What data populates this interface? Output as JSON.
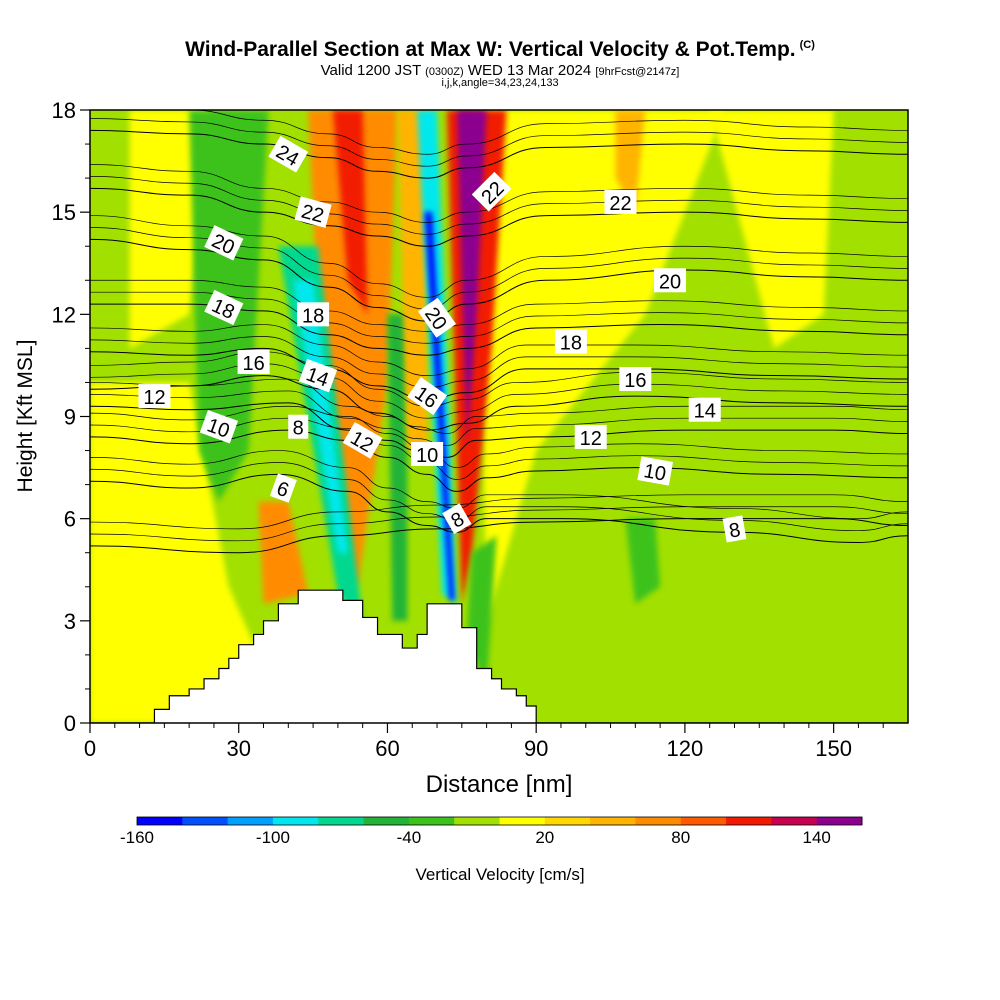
{
  "header": {
    "title": "Wind-Parallel Section at Max W: Vertical Velocity & Pot.Temp.",
    "title_mark": "(C)",
    "valid_prefix": "Valid 1200 JST",
    "valid_utc": "(0300Z)",
    "valid_date": "WED 13 Mar 2024",
    "forecast": "[9hrFcst@2147z]",
    "indices": "i,j,k,angle=34,23,24,133"
  },
  "chart_data": {
    "type": "heatmap",
    "xlabel": "Distance [nm]",
    "ylabel": "Height [Kft MSL]",
    "xlim": [
      0,
      165
    ],
    "ylim": [
      0,
      18
    ],
    "xticks": [
      0,
      30,
      60,
      90,
      120,
      150
    ],
    "yticks": [
      0,
      3,
      6,
      9,
      12,
      15,
      18
    ],
    "colorbar": {
      "label": "Vertical Velocity [cm/s]",
      "levels": [
        -160,
        -140,
        -120,
        -100,
        -80,
        -60,
        -40,
        -20,
        0,
        20,
        40,
        60,
        80,
        100,
        120,
        140,
        160
      ],
      "tick_labels": [
        -160,
        -100,
        -40,
        20,
        80,
        140
      ],
      "colors": [
        "#0000ff",
        "#0050ff",
        "#00a0ff",
        "#00e8ee",
        "#00d890",
        "#22b438",
        "#3cc21c",
        "#a2e000",
        "#ffff00",
        "#ffd800",
        "#ffb400",
        "#ff8c00",
        "#ff5a00",
        "#f21a00",
        "#c80050",
        "#8c0090"
      ]
    },
    "velocity_features": [
      {
        "name": "updraft",
        "x_bottom": 74,
        "x_top": 78,
        "w": 150
      },
      {
        "name": "downdraft",
        "x_bottom": 73,
        "x_top": 68,
        "w": -140
      },
      {
        "name": "downdraft",
        "x_bottom": 52,
        "x_top": 43,
        "w": -90
      },
      {
        "name": "updraft",
        "x_bottom": 38,
        "x_top": 58,
        "w": 70
      },
      {
        "name": "downdraft",
        "x_bottom": 22,
        "x_top": 36,
        "w": -40
      },
      {
        "name": "downdraft",
        "x": 112,
        "y": 5,
        "w": -40
      }
    ],
    "terrain": [
      [
        0,
        0
      ],
      [
        13,
        0.4
      ],
      [
        16,
        0.8
      ],
      [
        20,
        1.0
      ],
      [
        23,
        1.3
      ],
      [
        26,
        1.6
      ],
      [
        28,
        1.9
      ],
      [
        30,
        2.3
      ],
      [
        33,
        2.6
      ],
      [
        35,
        3.0
      ],
      [
        38,
        3.5
      ],
      [
        42,
        3.9
      ],
      [
        48,
        3.9
      ],
      [
        51,
        3.6
      ],
      [
        55,
        3.1
      ],
      [
        58,
        2.6
      ],
      [
        63,
        2.2
      ],
      [
        66,
        2.6
      ],
      [
        68,
        3.5
      ],
      [
        74,
        3.5
      ],
      [
        75,
        2.8
      ],
      [
        78,
        1.6
      ],
      [
        81,
        1.3
      ],
      [
        83,
        1.0
      ],
      [
        86,
        0.8
      ],
      [
        88,
        0.5
      ],
      [
        90,
        0
      ],
      [
        165,
        0
      ]
    ],
    "theta_contours": [
      {
        "label": "6",
        "points": [
          [
            0,
            5.2
          ],
          [
            30,
            5.0
          ],
          [
            50,
            5.5
          ],
          [
            70,
            5.7
          ],
          [
            90,
            5.9
          ],
          [
            120,
            6.0
          ],
          [
            150,
            6.0
          ],
          [
            165,
            5.8
          ]
        ]
      },
      {
        "label": "8",
        "points": [
          [
            0,
            7.1
          ],
          [
            20,
            6.9
          ],
          [
            38,
            7.3
          ],
          [
            52,
            6.8
          ],
          [
            60,
            6.2
          ],
          [
            68,
            5.8
          ],
          [
            74,
            5.6
          ],
          [
            80,
            6.0
          ],
          [
            95,
            6.0
          ],
          [
            130,
            5.6
          ],
          [
            155,
            5.3
          ],
          [
            165,
            5.5
          ]
        ]
      },
      {
        "label": "10",
        "points": [
          [
            0,
            8.4
          ],
          [
            20,
            8.2
          ],
          [
            40,
            8.6
          ],
          [
            52,
            8.3
          ],
          [
            60,
            7.8
          ],
          [
            68,
            7.3
          ],
          [
            74,
            6.8
          ],
          [
            80,
            7.2
          ],
          [
            90,
            7.4
          ],
          [
            110,
            7.5
          ],
          [
            140,
            7.3
          ],
          [
            165,
            7.2
          ]
        ]
      },
      {
        "label": "12",
        "points": [
          [
            0,
            9.3
          ],
          [
            20,
            9.2
          ],
          [
            40,
            9.4
          ],
          [
            52,
            8.6
          ],
          [
            60,
            8.3
          ],
          [
            66,
            8.0
          ],
          [
            72,
            7.8
          ],
          [
            78,
            8.3
          ],
          [
            90,
            8.4
          ],
          [
            120,
            8.6
          ],
          [
            150,
            8.6
          ],
          [
            165,
            8.5
          ]
        ]
      },
      {
        "label": "14",
        "points": [
          [
            0,
            9.8
          ],
          [
            20,
            9.9
          ],
          [
            35,
            10.2
          ],
          [
            48,
            9.8
          ],
          [
            58,
            9.1
          ],
          [
            68,
            8.6
          ],
          [
            76,
            8.8
          ],
          [
            86,
            9.3
          ],
          [
            110,
            9.6
          ],
          [
            140,
            9.4
          ],
          [
            165,
            9.3
          ]
        ]
      },
      {
        "label": "16",
        "points": [
          [
            0,
            10.9
          ],
          [
            20,
            10.8
          ],
          [
            35,
            11.0
          ],
          [
            48,
            10.4
          ],
          [
            58,
            9.9
          ],
          [
            68,
            9.5
          ],
          [
            76,
            9.7
          ],
          [
            88,
            10.4
          ],
          [
            110,
            10.4
          ],
          [
            140,
            10.2
          ],
          [
            165,
            10.1
          ]
        ]
      },
      {
        "label": "18",
        "points": [
          [
            0,
            12.3
          ],
          [
            20,
            12.3
          ],
          [
            35,
            12.1
          ],
          [
            48,
            11.4
          ],
          [
            58,
            11.0
          ],
          [
            68,
            10.8
          ],
          [
            76,
            11.0
          ],
          [
            90,
            11.6
          ],
          [
            115,
            11.7
          ],
          [
            145,
            11.5
          ],
          [
            165,
            11.4
          ]
        ]
      },
      {
        "label": "20",
        "points": [
          [
            0,
            14.2
          ],
          [
            20,
            13.9
          ],
          [
            35,
            13.6
          ],
          [
            48,
            12.8
          ],
          [
            58,
            12.2
          ],
          [
            68,
            11.8
          ],
          [
            76,
            12.3
          ],
          [
            92,
            13.0
          ],
          [
            120,
            13.3
          ],
          [
            145,
            13.1
          ],
          [
            165,
            13.0
          ]
        ]
      },
      {
        "label": "22",
        "points": [
          [
            0,
            15.7
          ],
          [
            20,
            15.5
          ],
          [
            35,
            15.0
          ],
          [
            48,
            14.6
          ],
          [
            58,
            14.3
          ],
          [
            68,
            14.0
          ],
          [
            76,
            14.3
          ],
          [
            92,
            14.9
          ],
          [
            120,
            15.0
          ],
          [
            145,
            14.8
          ],
          [
            165,
            14.7
          ]
        ]
      },
      {
        "label": "24",
        "points": [
          [
            0,
            17.4
          ],
          [
            20,
            17.3
          ],
          [
            35,
            17.0
          ],
          [
            48,
            16.6
          ],
          [
            58,
            16.2
          ],
          [
            68,
            16.0
          ],
          [
            76,
            16.3
          ],
          [
            92,
            16.9
          ],
          [
            120,
            17.0
          ],
          [
            145,
            16.8
          ],
          [
            165,
            16.7
          ]
        ]
      }
    ],
    "contour_labels": [
      {
        "text": "24",
        "x": 40,
        "y": 16.7,
        "angle": 30
      },
      {
        "text": "22",
        "x": 45,
        "y": 15.0,
        "angle": 15
      },
      {
        "text": "22",
        "x": 81,
        "y": 15.6,
        "angle": -45
      },
      {
        "text": "22",
        "x": 107,
        "y": 15.3,
        "angle": 0
      },
      {
        "text": "20",
        "x": 27,
        "y": 14.1,
        "angle": 25
      },
      {
        "text": "20",
        "x": 70,
        "y": 11.9,
        "angle": 55
      },
      {
        "text": "20",
        "x": 117,
        "y": 13.0,
        "angle": 0
      },
      {
        "text": "18",
        "x": 27,
        "y": 12.2,
        "angle": 25
      },
      {
        "text": "18",
        "x": 45,
        "y": 12.0,
        "angle": 0
      },
      {
        "text": "18",
        "x": 97,
        "y": 11.2,
        "angle": 0
      },
      {
        "text": "16",
        "x": 33,
        "y": 10.6,
        "angle": 0
      },
      {
        "text": "16",
        "x": 68,
        "y": 9.6,
        "angle": 35
      },
      {
        "text": "16",
        "x": 110,
        "y": 10.1,
        "angle": 0
      },
      {
        "text": "14",
        "x": 46,
        "y": 10.2,
        "angle": 20
      },
      {
        "text": "14",
        "x": 124,
        "y": 9.2,
        "angle": 0
      },
      {
        "text": "12",
        "x": 13,
        "y": 9.6,
        "angle": 0
      },
      {
        "text": "12",
        "x": 55,
        "y": 8.3,
        "angle": 30
      },
      {
        "text": "12",
        "x": 101,
        "y": 8.4,
        "angle": 0
      },
      {
        "text": "10",
        "x": 26,
        "y": 8.7,
        "angle": 20
      },
      {
        "text": "10",
        "x": 68,
        "y": 7.9,
        "angle": 0
      },
      {
        "text": "10",
        "x": 114,
        "y": 7.4,
        "angle": 10
      },
      {
        "text": "8",
        "x": 42,
        "y": 8.7,
        "angle": 0
      },
      {
        "text": "8",
        "x": 74,
        "y": 6.0,
        "angle": -30
      },
      {
        "text": "8",
        "x": 130,
        "y": 5.7,
        "angle": -10
      },
      {
        "text": "6",
        "x": 39,
        "y": 6.9,
        "angle": 20
      }
    ]
  }
}
